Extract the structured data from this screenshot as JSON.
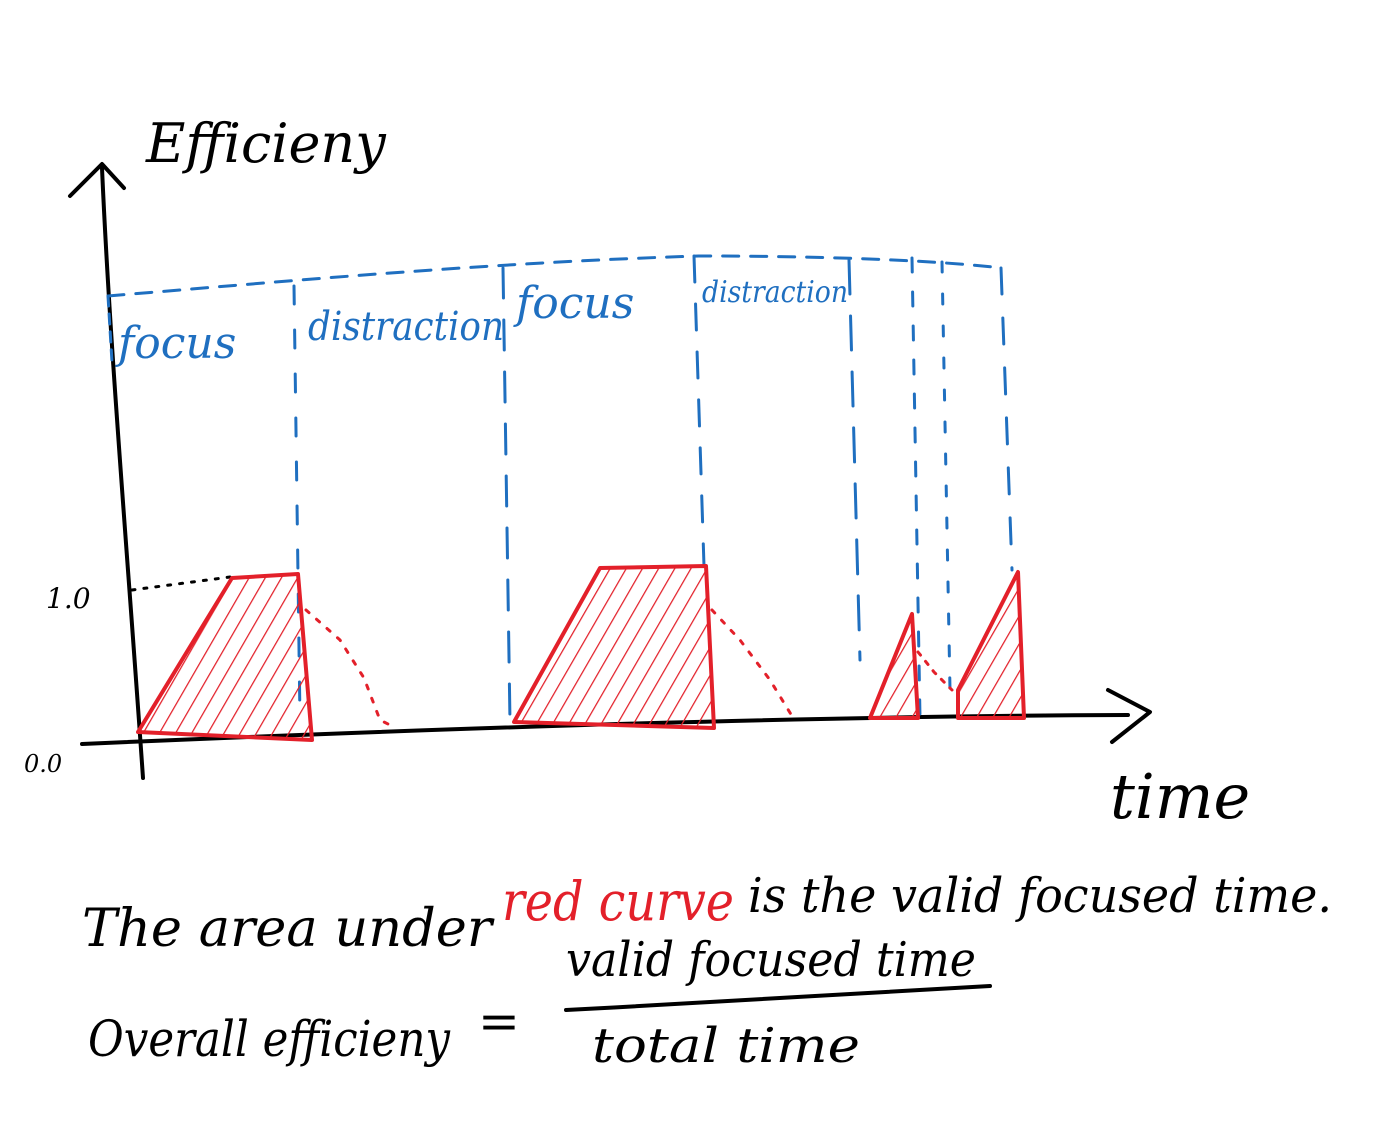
{
  "axis_labels": {
    "y_title": "Efficieny",
    "x_title": "time",
    "tick_top": "1.0",
    "tick_bottom": "0.0"
  },
  "segments": {
    "focus_1": "focus",
    "distraction_1": "distraction",
    "focus_2": "focus",
    "distraction_2": "distraction"
  },
  "caption": {
    "line1_before": "The area under",
    "line1_red": "red curve",
    "line1_after": "is the valid focused time.",
    "formula_lhs": "Overall efficieny",
    "equals": "=",
    "numerator": "valid focused time",
    "denominator": "total time"
  },
  "colors": {
    "ink": "#000000",
    "segment_lines": "#1f6fc0",
    "efficiency_curve": "#e3202a"
  }
}
